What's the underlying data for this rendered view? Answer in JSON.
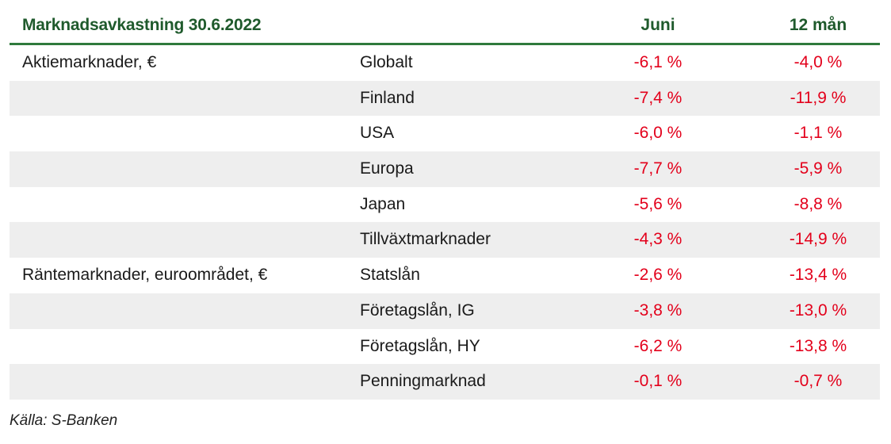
{
  "chart_data": {
    "type": "table",
    "title": "Marknadsavkastning 30.6.2022",
    "columns": [
      "Juni",
      "12 mån"
    ],
    "rows": [
      {
        "category": "Aktiemarknader, €",
        "label": "Globalt",
        "juni": "-6,1 %",
        "mon12": "-4,0 %"
      },
      {
        "category": "",
        "label": "Finland",
        "juni": "-7,4 %",
        "mon12": "-11,9 %"
      },
      {
        "category": "",
        "label": "USA",
        "juni": "-6,0 %",
        "mon12": "-1,1 %"
      },
      {
        "category": "",
        "label": "Europa",
        "juni": "-7,7 %",
        "mon12": "-5,9 %"
      },
      {
        "category": "",
        "label": "Japan",
        "juni": "-5,6 %",
        "mon12": "-8,8 %"
      },
      {
        "category": "",
        "label": "Tillväxtmarknader",
        "juni": "-4,3 %",
        "mon12": "-14,9 %"
      },
      {
        "category": "Räntemarknader, euroområdet, €",
        "label": "Statslån",
        "juni": "-2,6 %",
        "mon12": "-13,4 %"
      },
      {
        "category": "",
        "label": "Företagslån, IG",
        "juni": "-3,8 %",
        "mon12": "-13,0 %"
      },
      {
        "category": "",
        "label": "Företagslån, HY",
        "juni": "-6,2 %",
        "mon12": "-13,8 %"
      },
      {
        "category": "",
        "label": "Penningmarknad",
        "juni": "-0,1 %",
        "mon12": "-0,7 %"
      }
    ],
    "source": "Källa: S-Banken"
  },
  "colors": {
    "header_text": "#1f5a2c",
    "header_rule": "#2f7a3c",
    "negative_value": "#e3001b",
    "row_shade": "#eeeeee"
  }
}
